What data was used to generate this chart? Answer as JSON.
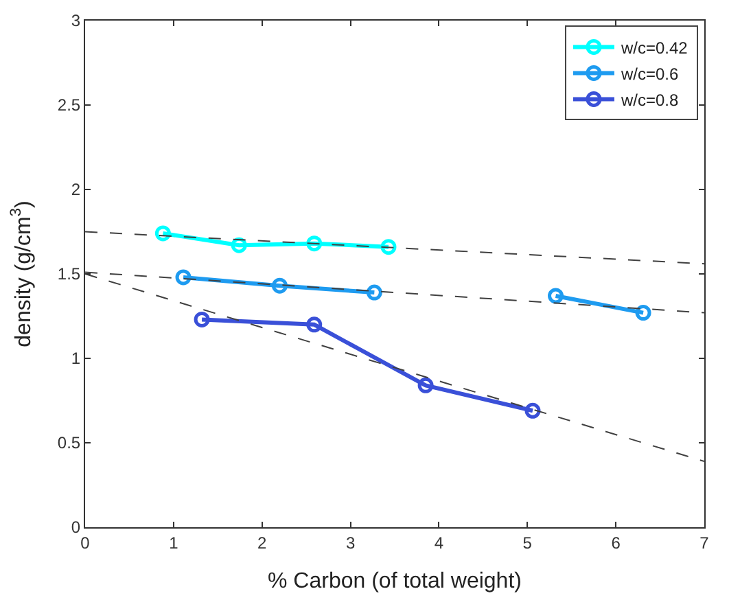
{
  "chart_data": {
    "type": "line",
    "xlabel": "% Carbon (of total weight)",
    "ylabel": "density (g/cm$^{3}$)",
    "xlim": [
      0,
      7
    ],
    "ylim": [
      0,
      3
    ],
    "xticks": [
      0,
      1,
      2,
      3,
      4,
      5,
      6,
      7
    ],
    "yticks": [
      0,
      0.5,
      1,
      1.5,
      2,
      2.5,
      3
    ],
    "legend": "top right",
    "marker": "circle",
    "line_style": "solid",
    "series": [
      {
        "name": "w/c=0.42",
        "color": "#00ffff",
        "x": [
          0.88,
          1.74,
          2.59,
          3.43
        ],
        "values": [
          1.74,
          1.67,
          1.68,
          1.66
        ]
      },
      {
        "name": "w/c=0.6",
        "color": "#1e9bf0",
        "x": [
          1.11,
          2.2,
          3.27,
          null,
          5.32,
          6.31
        ],
        "values": [
          1.48,
          1.43,
          1.39,
          null,
          1.37,
          1.27
        ]
      },
      {
        "name": "w/c=0.8",
        "color": "#3a50d8",
        "x": [
          1.32,
          2.59,
          3.85,
          5.06
        ],
        "values": [
          1.23,
          1.2,
          0.84,
          0.69
        ]
      },
      {
        "color": "#404040",
        "marker": "none",
        "line_style": "dashed",
        "x": [
          0,
          7
        ],
        "values": [
          1.75,
          1.56
        ]
      },
      {
        "color": "#404040",
        "marker": "none",
        "line_style": "dashed",
        "x": [
          0,
          7
        ],
        "values": [
          1.51,
          1.27
        ]
      },
      {
        "color": "#404040",
        "marker": "none",
        "line_style": "dashed",
        "x": [
          0,
          7
        ],
        "values": [
          1.5,
          0.39
        ]
      }
    ]
  }
}
